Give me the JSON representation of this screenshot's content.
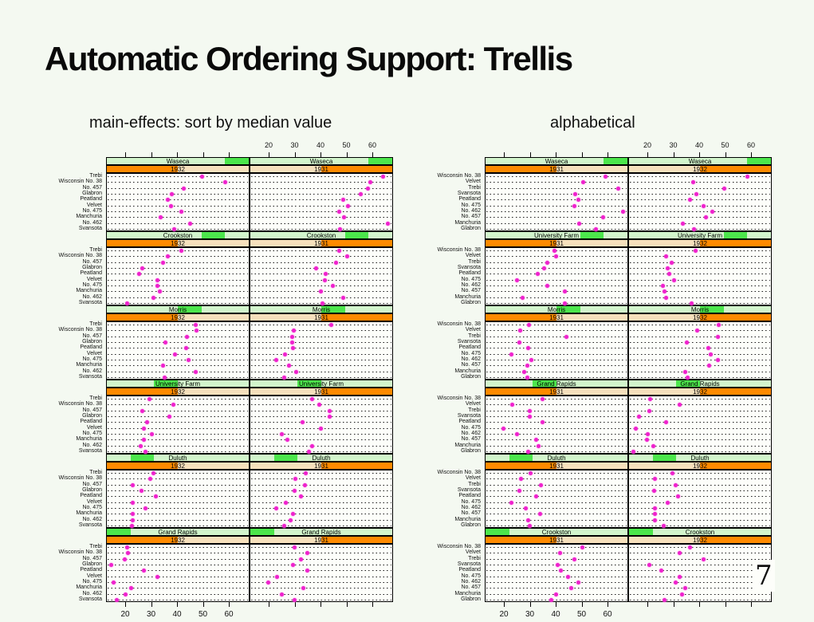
{
  "page": {
    "title": "Automatic Ordering Support: Trellis",
    "page_number": "7"
  },
  "colors": {
    "page_bg": "#f4f9f1",
    "panel_bg": "#fdfefa",
    "site_strip_bg": "#d2f5cc",
    "site_strip_indicator": "#4ce64c",
    "year_strip_bg": "#f6e0bc",
    "year_strip_indicator": "#ff8a00",
    "dot": "#ee22cc",
    "text": "#111111"
  },
  "chart_data": {
    "type": "trellis-dotplot",
    "description": "Barley yields dot plot, 6 sites x 2 years panels, 10 varieties per panel; same data shown twice with different panel/row orderings",
    "x_ticks": [
      20,
      30,
      40,
      50,
      60
    ],
    "x_domain": [
      12.6,
      68.0
    ],
    "years": [
      "1931",
      "1932"
    ],
    "varieties": [
      "Trebi",
      "Wisconsin No. 38",
      "No. 457",
      "Glabron",
      "Peatland",
      "Velvet",
      "No. 475",
      "Manchuria",
      "No. 462",
      "Svansota"
    ],
    "sites": [
      "University Farm",
      "Waseca",
      "Morris",
      "Crookston",
      "Grand Rapids",
      "Duluth"
    ],
    "yields": {
      "Trebi": {
        "University Farm": {
          "1931": 36.6,
          "1932": 29.1
        },
        "Waseca": {
          "1931": 63.8,
          "1932": 49.3
        },
        "Morris": {
          "1931": 43.8,
          "1932": 47.0
        },
        "Crookston": {
          "1931": 46.9,
          "1932": 41.5
        },
        "Grand Rapids": {
          "1931": 29.8,
          "1932": 20.6
        },
        "Duluth": {
          "1931": 33.9,
          "1932": 30.6
        }
      },
      "Wisconsin No. 38": {
        "University Farm": {
          "1931": 39.3,
          "1932": 38.3
        },
        "Waseca": {
          "1931": 58.8,
          "1932": 58.3
        },
        "Morris": {
          "1931": 29.5,
          "1932": 47.2
        },
        "Crookston": {
          "1931": 49.9,
          "1932": 36.0
        },
        "Grand Rapids": {
          "1931": 34.5,
          "1932": 20.9
        },
        "Duluth": {
          "1931": 29.9,
          "1932": 29.3
        }
      },
      "No. 457": {
        "University Farm": {
          "1931": 43.3,
          "1932": 26.4
        },
        "Waseca": {
          "1931": 58.1,
          "1932": 42.2
        },
        "Morris": {
          "1931": 28.7,
          "1932": 43.5
        },
        "Crookston": {
          "1931": 45.7,
          "1932": 34.3
        },
        "Grand Rapids": {
          "1931": 32.2,
          "1932": 19.5
        },
        "Duluth": {
          "1931": 33.6,
          "1932": 22.7
        }
      },
      "Glabron": {
        "University Farm": {
          "1931": 43.1,
          "1932": 36.8
        },
        "Waseca": {
          "1931": 55.2,
          "1932": 37.7
        },
        "Morris": {
          "1931": 28.8,
          "1932": 35.1
        },
        "Crookston": {
          "1931": 38.1,
          "1932": 26.2
        },
        "Grand Rapids": {
          "1931": 29.1,
          "1932": 14.4
        },
        "Duluth": {
          "1931": 29.7,
          "1932": 25.9
        }
      },
      "Peatland": {
        "University Farm": {
          "1931": 32.8,
          "1932": 28.1
        },
        "Waseca": {
          "1931": 48.6,
          "1932": 36.0
        },
        "Morris": {
          "1931": 29.1,
          "1932": 43.2
        },
        "Crookston": {
          "1931": 41.6,
          "1932": 25.2
        },
        "Grand Rapids": {
          "1931": 34.7,
          "1932": 26.8
        },
        "Duluth": {
          "1931": 32.0,
          "1932": 31.4
        }
      },
      "Velvet": {
        "University Farm": {
          "1931": 39.9,
          "1932": 26.8
        },
        "Waseca": {
          "1931": 50.2,
          "1932": 37.4
        },
        "Morris": {
          "1931": 26.1,
          "1932": 38.8
        },
        "Crookston": {
          "1931": 41.3,
          "1932": 32.1
        },
        "Grand Rapids": {
          "1931": 23.0,
          "1932": 32.2
        },
        "Duluth": {
          "1931": 26.3,
          "1932": 22.5
        }
      },
      "No. 475": {
        "University Farm": {
          "1931": 24.7,
          "1932": 30.0
        },
        "Waseca": {
          "1931": 46.8,
          "1932": 41.3
        },
        "Morris": {
          "1931": 22.5,
          "1932": 44.2
        },
        "Crookston": {
          "1931": 44.5,
          "1932": 32.1
        },
        "Grand Rapids": {
          "1931": 19.5,
          "1932": 15.2
        },
        "Duluth": {
          "1931": 22.6,
          "1932": 27.4
        }
      },
      "Manchuria": {
        "University Farm": {
          "1931": 27.0,
          "1932": 26.9
        },
        "Waseca": {
          "1931": 48.9,
          "1932": 33.5
        },
        "Morris": {
          "1931": 27.4,
          "1932": 34.4
        },
        "Crookston": {
          "1931": 39.9,
          "1932": 33.0
        },
        "Grand Rapids": {
          "1931": 33.0,
          "1932": 22.1
        },
        "Duluth": {
          "1931": 29.0,
          "1932": 22.6
        }
      },
      "No. 462": {
        "University Farm": {
          "1931": 36.6,
          "1932": 25.6
        },
        "Waseca": {
          "1931": 65.8,
          "1932": 44.7
        },
        "Morris": {
          "1931": 30.4,
          "1932": 47.0
        },
        "Crookston": {
          "1931": 48.6,
          "1932": 30.5
        },
        "Grand Rapids": {
          "1931": 24.9,
          "1932": 19.9
        },
        "Duluth": {
          "1931": 28.1,
          "1932": 22.5
        }
      },
      "Svansota": {
        "University Farm": {
          "1931": 35.1,
          "1932": 27.4
        },
        "Waseca": {
          "1931": 47.3,
          "1932": 38.5
        },
        "Morris": {
          "1931": 25.8,
          "1932": 35.0
        },
        "Crookston": {
          "1931": 40.5,
          "1932": 20.6
        },
        "Grand Rapids": {
          "1931": 29.7,
          "1932": 16.6
        },
        "Duluth": {
          "1931": 25.7,
          "1932": 22.2
        }
      }
    },
    "plots": [
      {
        "heading": "main-effects: sort by median value",
        "columns": [
          "1932",
          "1931"
        ],
        "sites_top_to_bottom": [
          "Waseca",
          "Crookston",
          "Morris",
          "University Farm",
          "Duluth",
          "Grand Rapids"
        ],
        "varieties_top_to_bottom": [
          "Trebi",
          "Wisconsin No. 38",
          "No. 457",
          "Glabron",
          "Peatland",
          "Velvet",
          "No. 475",
          "Manchuria",
          "No. 462",
          "Svansota"
        ]
      },
      {
        "heading": "alphabetical",
        "columns": [
          "1931",
          "1932"
        ],
        "sites_top_to_bottom": [
          "Waseca",
          "University Farm",
          "Morris",
          "Grand Rapids",
          "Duluth",
          "Crookston"
        ],
        "varieties_top_to_bottom": [
          "Wisconsin No. 38",
          "Velvet",
          "Trebi",
          "Svansota",
          "Peatland",
          "No. 475",
          "No. 462",
          "No. 457",
          "Manchuria",
          "Glabron"
        ]
      }
    ]
  }
}
